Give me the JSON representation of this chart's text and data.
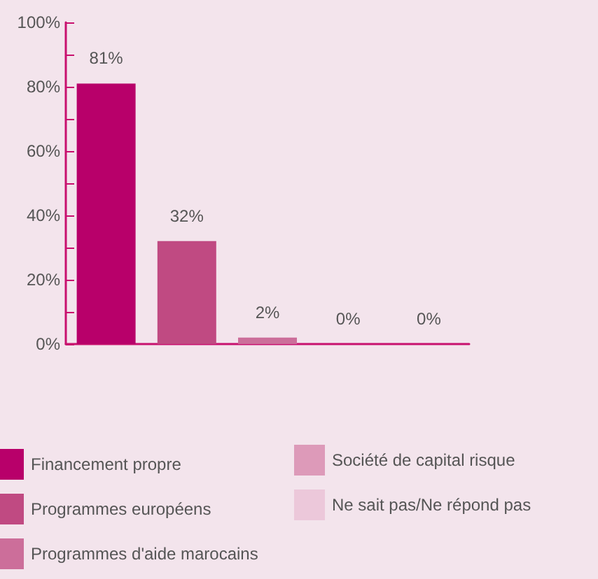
{
  "chart_data": {
    "type": "bar",
    "categories": [
      null,
      null,
      null,
      null,
      null
    ],
    "series": [
      {
        "name": "Financement propre",
        "color": "#b8006a",
        "values": [
          81,
          null,
          null,
          null,
          null
        ],
        "value_labels": [
          "81%",
          null,
          null,
          null,
          null
        ]
      },
      {
        "name": "Programmes européens",
        "color": "#c04a82",
        "values": [
          null,
          32,
          null,
          null,
          null
        ],
        "value_labels": [
          null,
          "32%",
          null,
          null,
          null
        ]
      },
      {
        "name": "Programmes d'aide marocains",
        "color": "#cc6e9a",
        "values": [
          null,
          null,
          2,
          null,
          null
        ],
        "value_labels": [
          null,
          null,
          "2%",
          null,
          null
        ]
      },
      {
        "name": "Société de capital risque",
        "color": "#dd9ab9",
        "values": [
          null,
          null,
          null,
          0,
          null
        ],
        "value_labels": [
          null,
          null,
          null,
          "0%",
          null
        ]
      },
      {
        "name": "Ne sait pas/Ne répond pas",
        "color": "#ecc8da",
        "values": [
          null,
          null,
          null,
          null,
          0
        ],
        "value_labels": [
          null,
          null,
          null,
          null,
          "0%"
        ]
      }
    ],
    "ylim": [
      0,
      100
    ],
    "yticks": [
      {
        "value": 0,
        "label": "0%"
      },
      {
        "value": 10,
        "label": null
      },
      {
        "value": 20,
        "label": "20%"
      },
      {
        "value": 30,
        "label": null
      },
      {
        "value": 40,
        "label": "40%"
      },
      {
        "value": 50,
        "label": null
      },
      {
        "value": 60,
        "label": "60%"
      },
      {
        "value": 70,
        "label": null
      },
      {
        "value": 80,
        "label": "80%"
      },
      {
        "value": 90,
        "label": null
      },
      {
        "value": 100,
        "label": "100%"
      }
    ],
    "grid": false,
    "legend": "bottom"
  }
}
